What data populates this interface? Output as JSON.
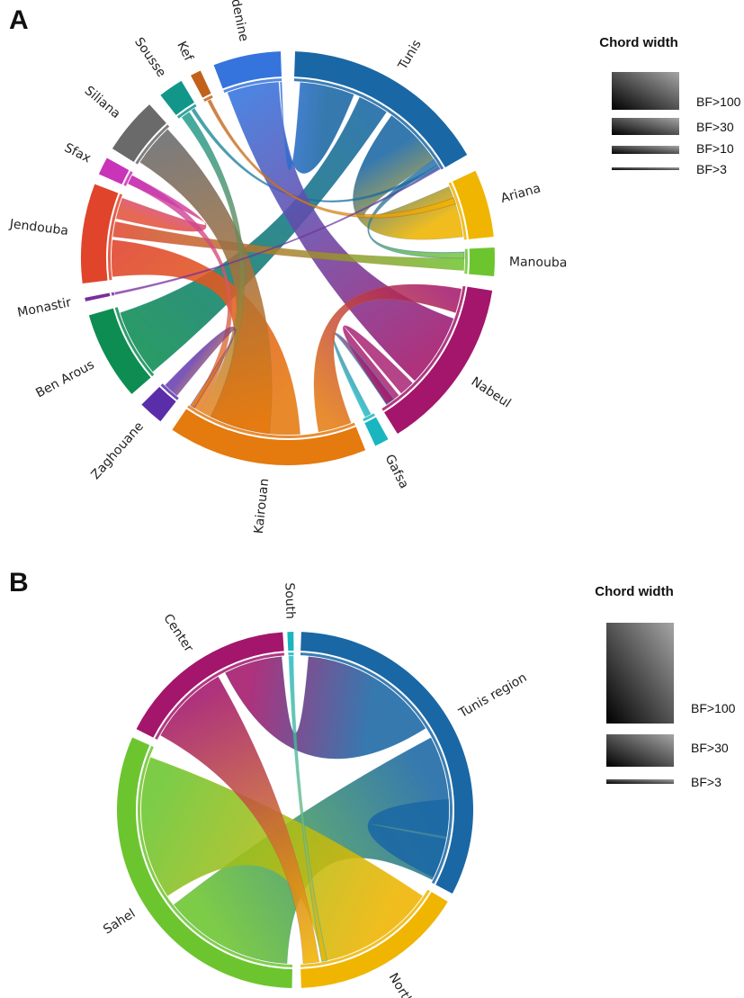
{
  "figure": {
    "panels": [
      {
        "letter": "A",
        "legend": {
          "title": "Chord width",
          "entries": [
            {
              "label": "BF>100",
              "level": 100
            },
            {
              "label": "BF>30",
              "level": 30
            },
            {
              "label": "BF>10",
              "level": 10
            },
            {
              "label": "BF>3",
              "level": 3
            }
          ]
        },
        "sectors": [
          {
            "name": "Tunis",
            "color": "#1a67a5",
            "start": 2,
            "end": 60
          },
          {
            "name": "Ariana",
            "color": "#f0b500",
            "start": 65,
            "end": 84
          },
          {
            "name": "Manouba",
            "color": "#6cc52f",
            "start": 87,
            "end": 95
          },
          {
            "name": "Nabeul",
            "color": "#a3166b",
            "start": 99,
            "end": 148
          },
          {
            "name": "Gafsa",
            "color": "#19b6bf",
            "start": 151,
            "end": 155
          },
          {
            "name": "Kairouan",
            "color": "#e57a0e",
            "start": 158,
            "end": 214
          },
          {
            "name": "Zaghouane",
            "color": "#5a2ea8",
            "start": 218,
            "end": 225
          },
          {
            "name": "Ben Arous",
            "color": "#0d8d52",
            "start": 229,
            "end": 254
          },
          {
            "name": "Monastir",
            "color": "#7b2c9c",
            "start": 258,
            "end": 259
          },
          {
            "name": "Jendouba",
            "color": "#e0442b",
            "start": 263,
            "end": 291
          },
          {
            "name": "Sfax",
            "color": "#c934b8",
            "start": 294,
            "end": 299
          },
          {
            "name": "Siliana",
            "color": "#6a6a6a",
            "start": 302,
            "end": 318
          },
          {
            "name": "Sousse",
            "color": "#12968a",
            "start": 322,
            "end": 329
          },
          {
            "name": "Kef",
            "color": "#c2621a",
            "start": 332,
            "end": 335
          },
          {
            "name": "Medenine",
            "color": "#3574dd",
            "start": 339,
            "end": 358
          }
        ],
        "chords": [
          {
            "from": "Tunis",
            "to": "Ariana",
            "from_span": [
              36,
              56
            ],
            "to_span": [
              66,
              83
            ],
            "strength": 100
          },
          {
            "from": "Tunis",
            "to": "Ben Arous",
            "from_span": [
              24,
              34
            ],
            "to_span": [
              230,
              252
            ],
            "strength": 100
          },
          {
            "from": "Tunis",
            "to": "Manouba",
            "from_span": [
              56,
              58
            ],
            "to_span": [
              88,
              90
            ],
            "strength": 3
          },
          {
            "from": "Tunis",
            "to": "Sousse",
            "from_span": [
              58,
              59
            ],
            "to_span": [
              327,
              328
            ],
            "strength": 3
          },
          {
            "from": "Medenine",
            "to": "Nabeul",
            "from_span": [
              340,
              357
            ],
            "to_span": [
              110,
              134
            ],
            "strength": 100
          },
          {
            "from": "Medenine",
            "to": "Tunis",
            "from_span": [
              357.5,
              358
            ],
            "to_span": [
              4,
              22
            ],
            "strength": 100
          },
          {
            "from": "Jendouba",
            "to": "Manouba",
            "from_span": [
              277,
              282
            ],
            "to_span": [
              90,
              94
            ],
            "strength": 30
          },
          {
            "from": "Jendouba",
            "to": "Kairouan",
            "from_span": [
              264,
              276
            ],
            "to_span": [
              176,
              206
            ],
            "strength": 100
          },
          {
            "from": "Jendouba",
            "to": "Sfax",
            "from_span": [
              283,
              290
            ],
            "to_span": [
              295,
              298
            ],
            "strength": 10
          },
          {
            "from": "Siliana",
            "to": "Kairouan",
            "from_span": [
              303,
              317
            ],
            "to_span": [
              186,
              206
            ],
            "strength": 100
          },
          {
            "from": "Sousse",
            "to": "Kairouan",
            "from_span": [
              323,
              326
            ],
            "to_span": [
              206,
              210
            ],
            "strength": 10
          },
          {
            "from": "Kef",
            "to": "Ariana",
            "from_span": [
              333,
              334
            ],
            "to_span": [
              70,
              72
            ],
            "strength": 3
          },
          {
            "from": "Sfax",
            "to": "Kairouan",
            "from_span": [
              295,
              298
            ],
            "to_span": [
              210,
              213
            ],
            "strength": 10
          },
          {
            "from": "Nabeul",
            "to": "Nabeul",
            "from_span": [
              135,
              140
            ],
            "to_span": [
              141,
              146
            ],
            "strength": 10
          },
          {
            "from": "Gafsa",
            "to": "Nabeul",
            "from_span": [
              152,
              154
            ],
            "to_span": [
              143,
              146
            ],
            "strength": 3
          },
          {
            "from": "Zaghouane",
            "to": "Kairouan",
            "from_span": [
              219,
              224
            ],
            "to_span": [
              212,
              213.5
            ],
            "strength": 3
          },
          {
            "from": "Monastir",
            "to": "Tunis",
            "from_span": [
              258.2,
              258.8
            ],
            "to_span": [
              59,
              59.6
            ],
            "strength": 3
          },
          {
            "from": "Kairouan",
            "to": "Nabeul",
            "from_span": [
              159,
              170
            ],
            "to_span": [
              100,
              108
            ],
            "strength": 30
          }
        ]
      },
      {
        "letter": "B",
        "legend": {
          "title": "Chord width",
          "entries": [
            {
              "label": "BF>100",
              "level": 100
            },
            {
              "label": "BF>30",
              "level": 30
            },
            {
              "label": "BF>3",
              "level": 3
            }
          ]
        },
        "sectors": [
          {
            "name": "Tunis region",
            "color": "#1a67a5",
            "start": 2,
            "end": 118
          },
          {
            "name": "North",
            "color": "#f0b500",
            "start": 121,
            "end": 178
          },
          {
            "name": "Sahel",
            "color": "#6cc52f",
            "start": 181,
            "end": 294
          },
          {
            "name": "Center",
            "color": "#a3166b",
            "start": 297,
            "end": 356
          },
          {
            "name": "South",
            "color": "#19b6bf",
            "start": 357.5,
            "end": 359.5
          }
        ],
        "chords": [
          {
            "from": "Tunis region",
            "to": "Sahel",
            "from_span": [
              62,
              117
            ],
            "to_span": [
              183,
              232
            ],
            "strength": 100
          },
          {
            "from": "Tunis region",
            "to": "Center",
            "from_span": [
              5,
              58
            ],
            "to_span": [
              333,
              355
            ],
            "strength": 100
          },
          {
            "from": "Tunis region",
            "to": "Tunis region",
            "from_span": [
              86,
              100
            ],
            "to_span": [
              101,
              116
            ],
            "strength": 30
          },
          {
            "from": "North",
            "to": "Sahel",
            "from_span": [
              124,
              170
            ],
            "to_span": [
              236,
              290
            ],
            "strength": 100
          },
          {
            "from": "Center",
            "to": "North",
            "from_span": [
              299,
              330
            ],
            "to_span": [
              171,
              177
            ],
            "strength": 100
          },
          {
            "from": "South",
            "to": "North",
            "from_span": [
              357.7,
              359.3
            ],
            "to_span": [
              168,
              170
            ],
            "strength": 3
          }
        ]
      }
    ]
  }
}
